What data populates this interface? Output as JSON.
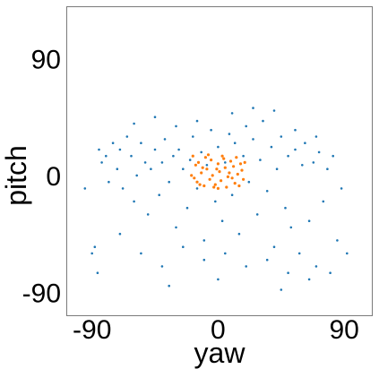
{
  "chart_data": {
    "type": "scatter",
    "title": "",
    "xlabel": "yaw",
    "ylabel": "pitch",
    "xlim": [
      -108,
      110
    ],
    "ylim": [
      -108,
      130
    ],
    "x_ticks": [
      -90,
      0,
      90
    ],
    "x_tick_labels": [
      "-90",
      "0",
      "90"
    ],
    "y_ticks": [
      -90,
      0,
      90
    ],
    "y_tick_labels": [
      "-90",
      "0",
      "90"
    ],
    "grid": false,
    "legend": "none",
    "series": [
      {
        "color": "#1f77b4",
        "marker_size": 1.3,
        "points": [
          [
            -90,
            -60
          ],
          [
            -88,
            -55
          ],
          [
            -85,
            20
          ],
          [
            -83,
            10
          ],
          [
            -80,
            15
          ],
          [
            -78,
            -5
          ],
          [
            -75,
            25
          ],
          [
            -72,
            5
          ],
          [
            -70,
            20
          ],
          [
            -68,
            -10
          ],
          [
            -65,
            30
          ],
          [
            -62,
            15
          ],
          [
            -60,
            -20
          ],
          [
            -58,
            0
          ],
          [
            -55,
            25
          ],
          [
            -52,
            10
          ],
          [
            -50,
            -30
          ],
          [
            -48,
            5
          ],
          [
            -45,
            20
          ],
          [
            -42,
            -15
          ],
          [
            -40,
            10
          ],
          [
            -38,
            28
          ],
          [
            -35,
            -5
          ],
          [
            -32,
            15
          ],
          [
            -30,
            -40
          ],
          [
            -28,
            20
          ],
          [
            -25,
            5
          ],
          [
            -22,
            -25
          ],
          [
            -20,
            12
          ],
          [
            -18,
            30
          ],
          [
            -15,
            -10
          ],
          [
            -12,
            18
          ],
          [
            -10,
            -50
          ],
          [
            -8,
            8
          ],
          [
            -5,
            35
          ],
          [
            -2,
            -20
          ],
          [
            0,
            22
          ],
          [
            3,
            -35
          ],
          [
            5,
            10
          ],
          [
            8,
            32
          ],
          [
            10,
            -15
          ],
          [
            12,
            25
          ],
          [
            15,
            -45
          ],
          [
            18,
            15
          ],
          [
            20,
            38
          ],
          [
            22,
            -5
          ],
          [
            25,
            28
          ],
          [
            28,
            -30
          ],
          [
            30,
            12
          ],
          [
            32,
            42
          ],
          [
            35,
            -12
          ],
          [
            38,
            22
          ],
          [
            40,
            -55
          ],
          [
            42,
            5
          ],
          [
            45,
            30
          ],
          [
            48,
            -25
          ],
          [
            50,
            15
          ],
          [
            52,
            -40
          ],
          [
            55,
            20
          ],
          [
            58,
            -60
          ],
          [
            60,
            8
          ],
          [
            62,
            25
          ],
          [
            65,
            -35
          ],
          [
            68,
            10
          ],
          [
            70,
            -70
          ],
          [
            72,
            18
          ],
          [
            75,
            -20
          ],
          [
            78,
            5
          ],
          [
            80,
            -75
          ],
          [
            82,
            15
          ],
          [
            85,
            -50
          ],
          [
            88,
            -10
          ],
          [
            -86,
            -75
          ],
          [
            -70,
            -45
          ],
          [
            -55,
            -60
          ],
          [
            -40,
            -70
          ],
          [
            -25,
            -55
          ],
          [
            -10,
            -65
          ],
          [
            5,
            -60
          ],
          [
            20,
            -70
          ],
          [
            35,
            -65
          ],
          [
            50,
            -75
          ],
          [
            65,
            -80
          ],
          [
            -60,
            40
          ],
          [
            -45,
            45
          ],
          [
            -30,
            38
          ],
          [
            -15,
            42
          ],
          [
            10,
            48
          ],
          [
            25,
            52
          ],
          [
            40,
            50
          ],
          [
            55,
            35
          ],
          [
            70,
            30
          ],
          [
            -95,
            -10
          ],
          [
            92,
            -60
          ],
          [
            0,
            -80
          ],
          [
            -35,
            -85
          ],
          [
            45,
            -88
          ]
        ]
      },
      {
        "color": "#ff7f0e",
        "marker_size": 1.6,
        "points": [
          [
            -18,
            15
          ],
          [
            -16,
            8
          ],
          [
            -15,
            -5
          ],
          [
            -14,
            10
          ],
          [
            -12,
            2
          ],
          [
            -10,
            -8
          ],
          [
            -9,
            14
          ],
          [
            -8,
            5
          ],
          [
            -6,
            -3
          ],
          [
            -5,
            12
          ],
          [
            -4,
            0
          ],
          [
            -2,
            -7
          ],
          [
            0,
            9
          ],
          [
            1,
            3
          ],
          [
            2,
            -4
          ],
          [
            4,
            13
          ],
          [
            5,
            6
          ],
          [
            6,
            -9
          ],
          [
            8,
            2
          ],
          [
            9,
            11
          ],
          [
            10,
            -2
          ],
          [
            11,
            7
          ],
          [
            12,
            -6
          ],
          [
            13,
            14
          ],
          [
            14,
            1
          ],
          [
            15,
            -8
          ],
          [
            16,
            9
          ],
          [
            17,
            4
          ],
          [
            18,
            -3
          ],
          [
            -17,
            -2
          ],
          [
            -13,
            -7
          ],
          [
            -11,
            6
          ],
          [
            -7,
            16
          ],
          [
            -3,
            -9
          ],
          [
            3,
            15
          ],
          [
            7,
            -1
          ],
          [
            -1,
            5
          ],
          [
            19,
            10
          ],
          [
            -19,
            0
          ],
          [
            0,
            -10
          ]
        ]
      }
    ]
  }
}
